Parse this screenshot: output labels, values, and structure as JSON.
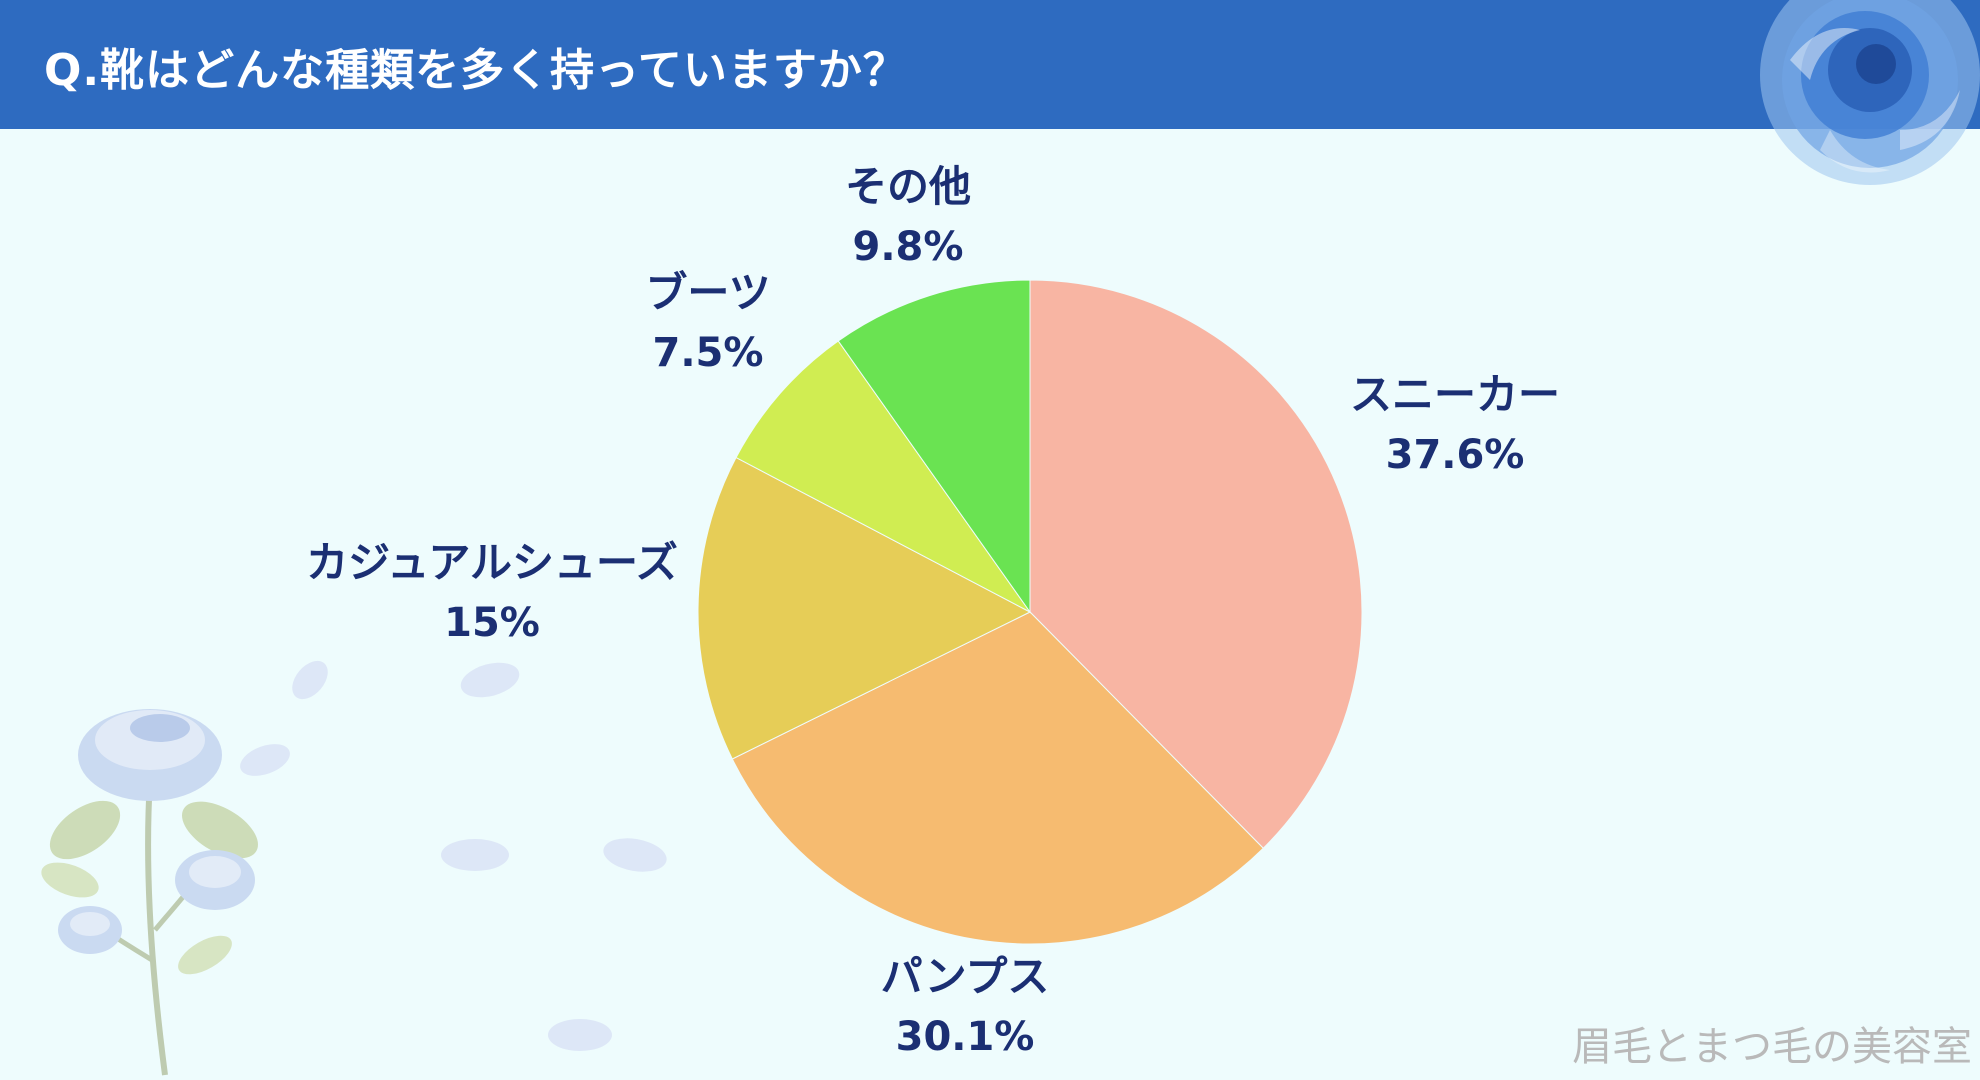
{
  "header": {
    "question": "Q.靴はどんな種類を多く持っていますか？",
    "background": "#2e6bc0"
  },
  "watermark": "眉毛とまつ毛の美容室",
  "chart_data": {
    "type": "pie",
    "title": "",
    "start_angle_deg": 0,
    "direction": "clockwise",
    "slices": [
      {
        "label": "スニーカー",
        "value": 37.6,
        "value_label": "37.6%",
        "color": "#f8b5a3"
      },
      {
        "label": "パンプス",
        "value": 30.1,
        "value_label": "30.1%",
        "color": "#f6bb70"
      },
      {
        "label": "カジュアルシューズ",
        "value": 15,
        "value_label": "15%",
        "color": "#e6cd57"
      },
      {
        "label": "ブーツ",
        "value": 7.5,
        "value_label": "7.5%",
        "color": "#d0ed52"
      },
      {
        "label": "その他",
        "value": 9.8,
        "value_label": "9.8%",
        "color": "#6ae352"
      }
    ]
  },
  "decorations": {
    "top_right": "blue-rose-icon",
    "bottom_left": "blue-rose-branch-icon"
  }
}
